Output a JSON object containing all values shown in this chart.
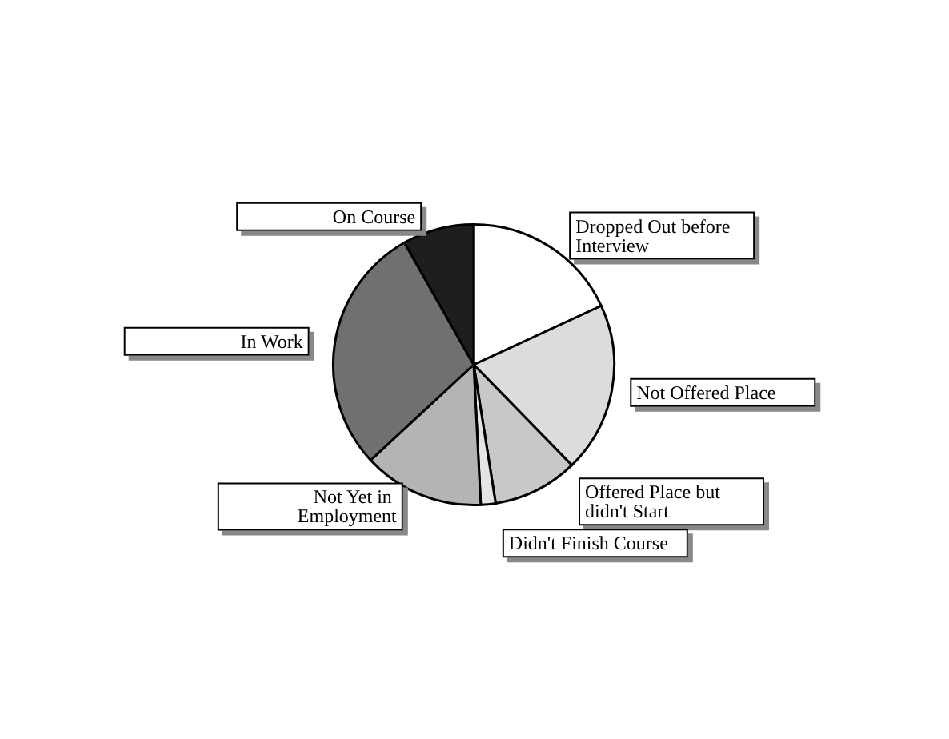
{
  "chart_data": {
    "type": "pie",
    "categories": [
      "Dropped Out before Interview",
      "Not Offered Place",
      "Offered Place but didn't Start",
      "Didn't Finish Course",
      "Not Yet in Employment",
      "In Work",
      "On Course"
    ],
    "values": [
      18.1,
      19.6,
      9.8,
      1.7,
      13.9,
      28.7,
      8.2
    ],
    "colors": [
      "#ffffff",
      "#dcdcdc",
      "#c8c8c8",
      "#e4e4e4",
      "#b4b4b4",
      "#707070",
      "#1e1e1e"
    ],
    "legend": false
  }
}
